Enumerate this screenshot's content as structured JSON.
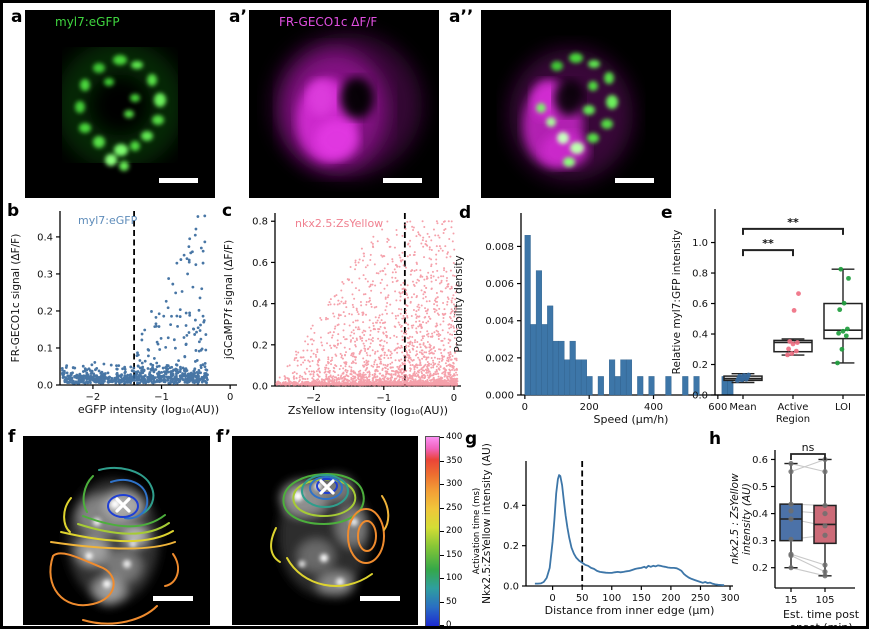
{
  "panels": {
    "letters": {
      "a": "a",
      "a1": "a’",
      "a2": "a’’",
      "b": "b",
      "c": "c",
      "d": "d",
      "e": "e",
      "f": "f",
      "f1": "f’",
      "g": "g",
      "h": "h"
    },
    "image_labels": {
      "a": "myl7:eGFP",
      "a1": "FR-GECO1c ΔF/F"
    },
    "label_colors": {
      "a": "#3fd43f",
      "a1": "#e24fe2"
    }
  },
  "chart_data": [
    {
      "id": "b",
      "type": "scatter",
      "legend": "myl7:eGFP",
      "legend_color": "#5e8cba",
      "xlabel": "eGFP intensity (log₁₀(AU))",
      "ylabel": "FR-GECO1c signal (ΔF/F)",
      "xlim": [
        -2.48,
        0.1
      ],
      "ylim": [
        0,
        0.47
      ],
      "xticks": [
        -2,
        -1,
        0
      ],
      "xtick_labels": [
        "−2",
        "−1",
        "0"
      ],
      "yticks": [
        0.0,
        0.1,
        0.2,
        0.3,
        0.4
      ],
      "ytick_labels": [
        "0.0",
        "0.1",
        "0.2",
        "0.3",
        "0.4"
      ],
      "dashed_x": -1.4,
      "point_color": "#35689c",
      "point_radius": 1.4,
      "generator": {
        "seed": 42,
        "baseline_n": 620,
        "baseline_x": [
          -2.45,
          -0.33
        ],
        "active_n": 140,
        "active_x": [
          -1.38,
          -0.34
        ],
        "active_ymax": 0.46
      },
      "highlight_points": [
        [
          -0.47,
          0.455
        ],
        [
          -0.42,
          0.37
        ],
        [
          -0.55,
          0.36
        ],
        [
          -0.5,
          0.325
        ],
        [
          -0.62,
          0.3
        ]
      ]
    },
    {
      "id": "c",
      "type": "scatter",
      "legend": "nkx2.5:ZsYellow",
      "legend_color": "#f08090",
      "xlabel": "ZsYellow intensity (log₁₀(AU))",
      "ylabel": "jGCaMP7f signal (ΔF/F)",
      "xlim": [
        -2.55,
        0.1
      ],
      "ylim": [
        0,
        0.84
      ],
      "xticks": [
        -2,
        -1,
        0
      ],
      "xtick_labels": [
        "−2",
        "−1",
        "0"
      ],
      "yticks": [
        0.0,
        0.2,
        0.4,
        0.6,
        0.8
      ],
      "ytick_labels": [
        "0.0",
        "0.2",
        "0.4",
        "0.6",
        "0.8"
      ],
      "dashed_x": -0.7,
      "point_color": "#f2828f",
      "point_radius": 1.0,
      "generator": {
        "seed": 7,
        "n": 2800,
        "x_pow": 0.6,
        "y_pow": 4.5,
        "ymax": 0.8
      }
    },
    {
      "id": "d",
      "type": "bar",
      "xlabel": "Speed (μm/h)",
      "ylabel": "Probability density",
      "bin_start": 0,
      "bin_width": 17.5,
      "heights": [
        0.0086,
        0.0038,
        0.0067,
        0.0038,
        0.0048,
        0.0029,
        0.0029,
        0.0019,
        0.0029,
        0.0019,
        0.0019,
        0.001,
        0,
        0.001,
        0,
        0.0019,
        0.001,
        0.0019,
        0.0019,
        0,
        0.001,
        0,
        0.001,
        0,
        0,
        0.001,
        0,
        0,
        0.001,
        0,
        0.001,
        0,
        0,
        0,
        0,
        0.001,
        0.001,
        0,
        0,
        0
      ],
      "xlim": [
        -12,
        672
      ],
      "ylim": [
        0,
        0.0098
      ],
      "xticks": [
        0,
        200,
        400,
        600
      ],
      "xtick_labels": [
        "0",
        "200",
        "400",
        "600"
      ],
      "yticks": [
        0,
        0.002,
        0.004,
        0.006,
        0.008
      ],
      "ytick_labels": [
        "0.000",
        "0.002",
        "0.004",
        "0.006",
        "0.008"
      ],
      "bar_color": "#3d76a8"
    },
    {
      "id": "e",
      "type": "box",
      "ylabel": "Relative myl7:GFP intensity",
      "categories": [
        "Mean",
        "Active\nRegion",
        "LOI"
      ],
      "ylim": [
        0,
        1.22
      ],
      "yticks": [
        0.0,
        0.2,
        0.4,
        0.6,
        0.8,
        1.0
      ],
      "ytick_labels": [
        "0.0",
        "0.2",
        "0.4",
        "0.6",
        "0.8",
        "1.0"
      ],
      "boxes": [
        {
          "label": "Mean",
          "lo": 0.082,
          "q1": 0.096,
          "med": 0.108,
          "q3": 0.124,
          "hi": 0.14,
          "points": [
            0.095,
            0.1,
            0.104,
            0.108,
            0.112,
            0.118,
            0.123,
            0.128,
            0.131
          ],
          "point_color": "#35689c"
        },
        {
          "label": "Active Region",
          "lo": 0.262,
          "q1": 0.284,
          "med": 0.345,
          "q3": 0.358,
          "hi": 0.368,
          "points": [
            0.263,
            0.272,
            0.288,
            0.302,
            0.335,
            0.344,
            0.351,
            0.555,
            0.665
          ],
          "point_color": "#ef7083"
        },
        {
          "label": "LOI",
          "lo": 0.21,
          "q1": 0.37,
          "med": 0.425,
          "q3": 0.6,
          "hi": 0.825,
          "points": [
            0.21,
            0.3,
            0.388,
            0.405,
            0.418,
            0.433,
            0.56,
            0.602,
            0.765,
            0.825
          ],
          "point_color": "#1f9e3e"
        }
      ],
      "brackets": [
        {
          "from": 0,
          "to": 1,
          "y": 0.95,
          "label": "**"
        },
        {
          "from": 0,
          "to": 2,
          "y": 1.09,
          "label": "**"
        }
      ]
    },
    {
      "id": "g",
      "type": "line",
      "xlabel": "Distance from inner edge (μm)",
      "ylabel": "Nkx2.5:ZsYellow intensity (AU)",
      "xlim": [
        -45,
        305
      ],
      "ylim": [
        0,
        0.62
      ],
      "xticks": [
        0,
        50,
        100,
        150,
        200,
        250,
        300
      ],
      "xtick_labels": [
        "0",
        "50",
        "100",
        "150",
        "200",
        "250",
        "300"
      ],
      "yticks": [
        0.0,
        0.2,
        0.4
      ],
      "ytick_labels": [
        "0.0",
        "0.2",
        "0.4"
      ],
      "dashed_x": 50,
      "line_color": "#3d76a8",
      "points": [
        [
          -30,
          0.012
        ],
        [
          -25,
          0.012
        ],
        [
          -20,
          0.013
        ],
        [
          -15,
          0.02
        ],
        [
          -10,
          0.04
        ],
        [
          -5,
          0.09
        ],
        [
          0,
          0.22
        ],
        [
          3,
          0.33
        ],
        [
          6,
          0.46
        ],
        [
          9,
          0.53
        ],
        [
          11,
          0.55
        ],
        [
          13,
          0.545
        ],
        [
          16,
          0.5
        ],
        [
          19,
          0.42
        ],
        [
          22,
          0.35
        ],
        [
          25,
          0.29
        ],
        [
          28,
          0.24
        ],
        [
          32,
          0.19
        ],
        [
          36,
          0.16
        ],
        [
          40,
          0.14
        ],
        [
          45,
          0.125
        ],
        [
          50,
          0.115
        ],
        [
          55,
          0.105
        ],
        [
          60,
          0.1
        ],
        [
          65,
          0.09
        ],
        [
          70,
          0.085
        ],
        [
          75,
          0.075
        ],
        [
          80,
          0.07
        ],
        [
          85,
          0.068
        ],
        [
          90,
          0.066
        ],
        [
          95,
          0.065
        ],
        [
          100,
          0.065
        ],
        [
          105,
          0.068
        ],
        [
          110,
          0.07
        ],
        [
          115,
          0.068
        ],
        [
          120,
          0.07
        ],
        [
          125,
          0.073
        ],
        [
          130,
          0.075
        ],
        [
          135,
          0.08
        ],
        [
          140,
          0.085
        ],
        [
          145,
          0.088
        ],
        [
          150,
          0.09
        ],
        [
          155,
          0.095
        ],
        [
          158,
          0.09
        ],
        [
          162,
          0.1
        ],
        [
          166,
          0.095
        ],
        [
          170,
          0.1
        ],
        [
          174,
          0.097
        ],
        [
          178,
          0.102
        ],
        [
          182,
          0.1
        ],
        [
          186,
          0.097
        ],
        [
          190,
          0.095
        ],
        [
          195,
          0.092
        ],
        [
          200,
          0.09
        ],
        [
          205,
          0.09
        ],
        [
          210,
          0.088
        ],
        [
          214,
          0.082
        ],
        [
          218,
          0.075
        ],
        [
          222,
          0.06
        ],
        [
          226,
          0.05
        ],
        [
          230,
          0.042
        ],
        [
          235,
          0.035
        ],
        [
          240,
          0.03
        ],
        [
          245,
          0.025
        ],
        [
          250,
          0.02
        ],
        [
          254,
          0.016
        ],
        [
          258,
          0.02
        ],
        [
          262,
          0.015
        ],
        [
          266,
          0.017
        ],
        [
          270,
          0.012
        ],
        [
          275,
          0.008
        ],
        [
          280,
          0.006
        ],
        [
          285,
          0.005
        ],
        [
          290,
          0.004
        ]
      ]
    },
    {
      "id": "h",
      "type": "paired_box",
      "ylabel_lines": [
        "nkx2.5 : ZsYellow",
        "intensity (AU)"
      ],
      "xlabel_lines": [
        "Est. time post",
        "onset (min)"
      ],
      "categories": [
        "15",
        "105"
      ],
      "ylim": [
        0.125,
        0.635
      ],
      "yticks": [
        0.2,
        0.3,
        0.4,
        0.5,
        0.6
      ],
      "ytick_labels": [
        "0.2",
        "0.3",
        "0.4",
        "0.5",
        "0.6"
      ],
      "boxes": [
        {
          "label": "15",
          "lo": 0.2,
          "q1": 0.3,
          "med": 0.38,
          "q3": 0.435,
          "hi": 0.585,
          "fill": "#4c72a8"
        },
        {
          "label": "105",
          "lo": 0.17,
          "q1": 0.29,
          "med": 0.36,
          "q3": 0.43,
          "hi": 0.6,
          "fill": "#cc6b78"
        }
      ],
      "pairs": [
        [
          0.585,
          0.555
        ],
        [
          0.555,
          0.6
        ],
        [
          0.435,
          0.43
        ],
        [
          0.41,
          0.4
        ],
        [
          0.38,
          0.355
        ],
        [
          0.305,
          0.32
        ],
        [
          0.25,
          0.21
        ],
        [
          0.245,
          0.185
        ],
        [
          0.2,
          0.17
        ]
      ],
      "ns_label": "ns"
    },
    {
      "id": "cbar",
      "type": "colorbar",
      "label": "Activation time (ms)",
      "ticks": [
        0,
        50,
        100,
        150,
        200,
        250,
        300,
        350,
        400
      ],
      "range": [
        0,
        400
      ],
      "colors_bottom_to_top": [
        "#1d2ad0",
        "#2a6ec3",
        "#2f9f9f",
        "#35a848",
        "#86c636",
        "#d4dd35",
        "#f0c63a",
        "#f29c36",
        "#ee6f30",
        "#ea4438",
        "#f163bd",
        "#fb90f2"
      ]
    }
  ]
}
